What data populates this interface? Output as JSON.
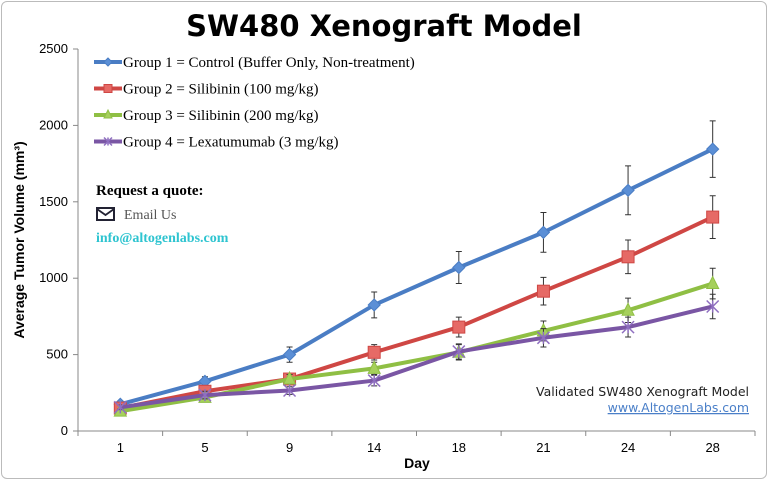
{
  "chart_data": {
    "type": "line",
    "title": "SW480 Xenograft Model",
    "xlabel": "Day",
    "ylabel": "Average Tumor Volume (mm³)",
    "categories": [
      "1",
      "5",
      "9",
      "14",
      "18",
      "21",
      "24",
      "28"
    ],
    "ylim": [
      0,
      2500
    ],
    "yticks": [
      0,
      500,
      1000,
      1500,
      2000,
      2500
    ],
    "grid": false,
    "legend_position": "top-left",
    "series": [
      {
        "name": "Group 1 = Control (Buffer Only, Non-treatment)",
        "color": "#4a7dc4",
        "marker": "diamond",
        "values": [
          175,
          325,
          500,
          825,
          1070,
          1300,
          1575,
          1845
        ],
        "errors": [
          20,
          30,
          50,
          85,
          105,
          130,
          160,
          185
        ]
      },
      {
        "name": "Group 2 = Silibinin (100 mg/kg)",
        "color": "#cf4744",
        "marker": "square",
        "values": [
          150,
          260,
          340,
          515,
          680,
          915,
          1140,
          1400
        ],
        "errors": [
          20,
          25,
          35,
          50,
          65,
          90,
          110,
          140
        ]
      },
      {
        "name": "Group 3 = Silibinin (200 mg/kg)",
        "color": "#8fbf44",
        "marker": "triangle",
        "values": [
          130,
          220,
          340,
          410,
          515,
          655,
          790,
          965
        ],
        "errors": [
          15,
          20,
          30,
          40,
          50,
          65,
          80,
          100
        ]
      },
      {
        "name": "Group 4 = Lexatumumab (3 mg/kg)",
        "color": "#7a56a4",
        "marker": "x",
        "values": [
          155,
          235,
          265,
          330,
          520,
          610,
          680,
          815
        ],
        "errors": [
          15,
          25,
          25,
          35,
          50,
          60,
          65,
          80
        ]
      }
    ]
  },
  "promo": {
    "request": "Request a quote:",
    "email_label": "Email Us",
    "email": "info@altogenlabs.com",
    "validated": "Validated SW480 Xenograft Model",
    "url": "www.AltogenLabs.com"
  }
}
